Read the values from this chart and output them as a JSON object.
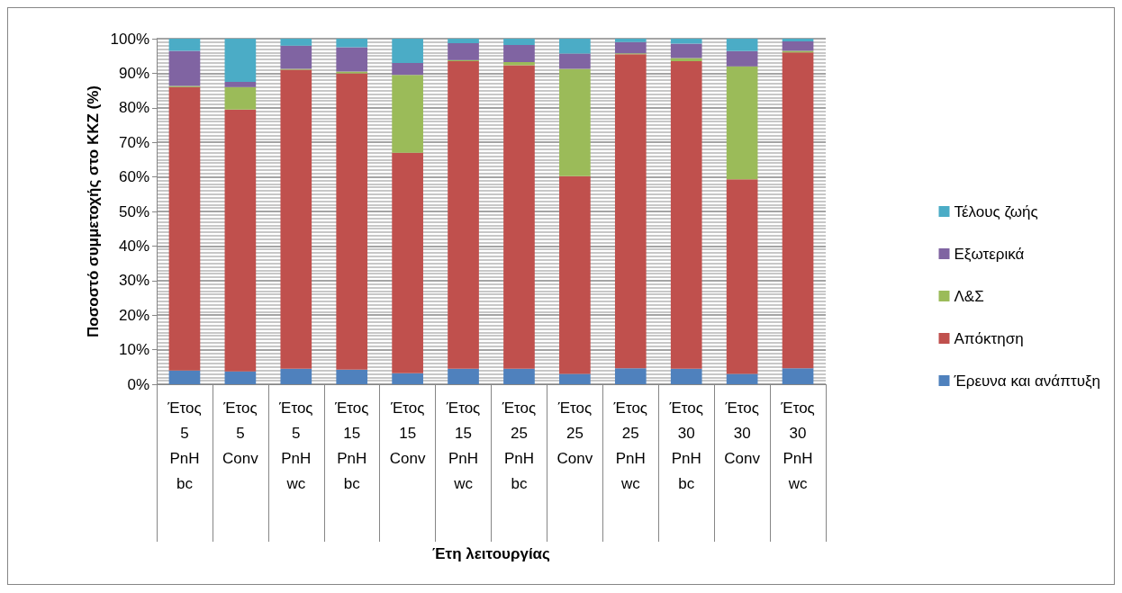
{
  "chart_data": {
    "type": "bar",
    "stacked": true,
    "xlabel": "Έτη λειτουργίας",
    "ylabel": "Ποσοστό συμμετοχής στο ΚΚΖ (%)",
    "categories": [
      "Έτος 5 PnH bc",
      "Έτος 5 Conv",
      "Έτος 5 PnH wc",
      "Έτος 15 PnH bc",
      "Έτος 15 Conv",
      "Έτος 15 PnH wc",
      "Έτος 25 PnH bc",
      "Έτος 25 Conv",
      "Έτος 25 PnH wc",
      "Έτος 30 PnH bc",
      "Έτος 30 Conv",
      "Έτος 30 PnH wc"
    ],
    "series": [
      {
        "name": "Έρευνα και ανάπτυξη",
        "color": "#4f81bd",
        "values": [
          4,
          3.7,
          4.5,
          4.2,
          3.2,
          4.5,
          4.5,
          3,
          4.6,
          4.5,
          3,
          4.6
        ]
      },
      {
        "name": "Απόκτηση",
        "color": "#c0504d",
        "values": [
          82,
          75.8,
          86.5,
          85.8,
          63.8,
          89,
          87.8,
          57.2,
          90.9,
          89,
          56.3,
          91.4
        ]
      },
      {
        "name": "Λ&Σ",
        "color": "#9bbb59",
        "values": [
          0.3,
          6.5,
          0.3,
          0.5,
          22.5,
          0.3,
          0.9,
          31.1,
          0.3,
          0.9,
          32.7,
          0.5
        ]
      },
      {
        "name": "Εξωτερικά",
        "color": "#8064a2",
        "values": [
          10.2,
          1.5,
          6.7,
          7,
          3.5,
          4.9,
          5,
          4.4,
          3.2,
          4.2,
          4.4,
          2.7
        ]
      },
      {
        "name": "Τέλους ζωής",
        "color": "#4bacc6",
        "values": [
          3.5,
          12.5,
          2,
          2.5,
          7,
          1.3,
          1.8,
          4.3,
          1,
          1.4,
          3.6,
          0.8
        ]
      }
    ],
    "ylim": [
      0,
      100
    ],
    "yticks": [
      {
        "value": 0,
        "label": "0%"
      },
      {
        "value": 10,
        "label": "10%"
      },
      {
        "value": 20,
        "label": "20%"
      },
      {
        "value": 30,
        "label": "30%"
      },
      {
        "value": 40,
        "label": "40%"
      },
      {
        "value": 50,
        "label": "50%"
      },
      {
        "value": 60,
        "label": "60%"
      },
      {
        "value": 70,
        "label": "70%"
      },
      {
        "value": 80,
        "label": "80%"
      },
      {
        "value": 90,
        "label": "90%"
      },
      {
        "value": 100,
        "label": "100%"
      }
    ],
    "grid": true,
    "legend": "right"
  }
}
